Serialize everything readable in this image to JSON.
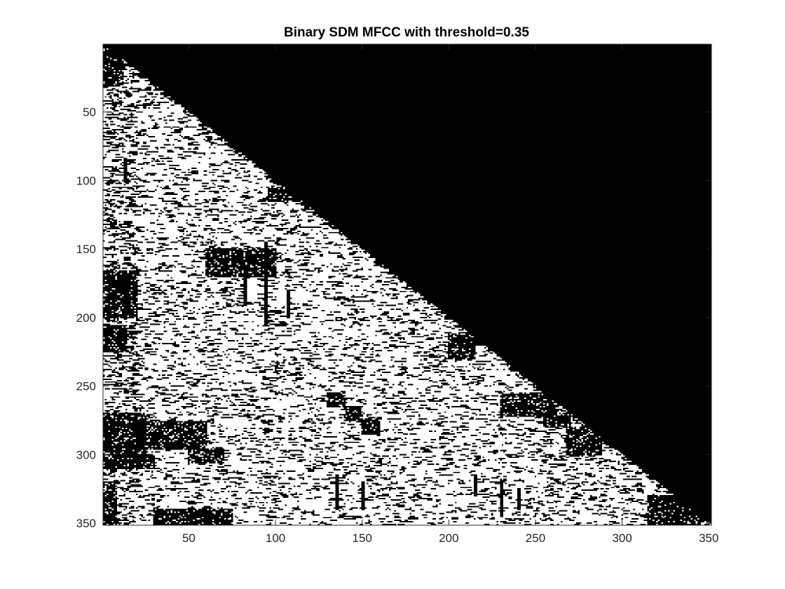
{
  "chart_data": {
    "type": "heatmap",
    "title": "Binary SDM MFCC with threshold=0.35",
    "xlabel": "",
    "ylabel": "",
    "xlim": [
      0.5,
      351.5
    ],
    "ylim": [
      0.5,
      351.5
    ],
    "y_direction": "reversed",
    "matrix_size": 351,
    "xticks": [
      50,
      100,
      150,
      200,
      250,
      300,
      350
    ],
    "yticks": [
      50,
      100,
      150,
      200,
      250,
      300,
      350
    ],
    "value_colors": {
      "0": "#000000",
      "1": "#ffffff"
    },
    "upper_triangle_value": 0,
    "lower_triangle_default": 1,
    "grid": false,
    "legend": "none",
    "black_regions": [
      {
        "x": [
          1,
          12
        ],
        "y": [
          1,
          30
        ]
      },
      {
        "x": [
          1,
          14
        ],
        "y": [
          206,
          225
        ]
      },
      {
        "x": [
          1,
          25
        ],
        "y": [
          270,
          300
        ]
      },
      {
        "x": [
          1,
          30
        ],
        "y": [
          300,
          310
        ]
      },
      {
        "x": [
          20,
          60
        ],
        "y": [
          276,
          296
        ]
      },
      {
        "x": [
          50,
          70
        ],
        "y": [
          296,
          306
        ]
      },
      {
        "x": [
          1,
          20
        ],
        "y": [
          166,
          200
        ]
      },
      {
        "x": [
          1,
          8
        ],
        "y": [
          320,
          351
        ]
      },
      {
        "x": [
          30,
          75
        ],
        "y": [
          340,
          351
        ]
      },
      {
        "x": [
          130,
          140
        ],
        "y": [
          255,
          265
        ]
      },
      {
        "x": [
          140,
          150
        ],
        "y": [
          265,
          275
        ]
      },
      {
        "x": [
          150,
          160
        ],
        "y": [
          275,
          285
        ]
      },
      {
        "x": [
          200,
          215
        ],
        "y": [
          212,
          230
        ]
      },
      {
        "x": [
          230,
          260
        ],
        "y": [
          256,
          272
        ]
      },
      {
        "x": [
          255,
          270
        ],
        "y": [
          270,
          280
        ]
      },
      {
        "x": [
          268,
          288
        ],
        "y": [
          280,
          300
        ]
      },
      {
        "x": [
          96,
          118
        ],
        "y": [
          105,
          115
        ]
      },
      {
        "x": [
          60,
          100
        ],
        "y": [
          150,
          170
        ]
      },
      {
        "x": [
          315,
          345
        ],
        "y": [
          330,
          351
        ]
      }
    ],
    "vertical_lines": [
      {
        "x": 13,
        "y": [
          85,
          100
        ]
      },
      {
        "x": 13,
        "y": [
          175,
          200
        ]
      },
      {
        "x": 94,
        "y": [
          145,
          205
        ]
      },
      {
        "x": 82,
        "y": [
          165,
          190
        ]
      },
      {
        "x": 107,
        "y": [
          180,
          200
        ]
      },
      {
        "x": 135,
        "y": [
          315,
          340
        ]
      },
      {
        "x": 150,
        "y": [
          320,
          340
        ]
      },
      {
        "x": 230,
        "y": [
          320,
          345
        ]
      },
      {
        "x": 215,
        "y": [
          315,
          330
        ]
      },
      {
        "x": 240,
        "y": [
          325,
          340
        ]
      }
    ],
    "noise_density": 0.15
  }
}
